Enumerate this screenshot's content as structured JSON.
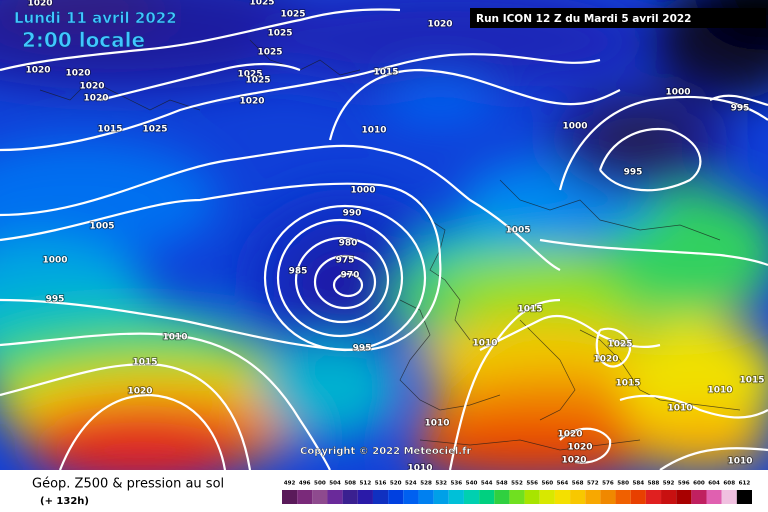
{
  "header": {
    "date": "Lundi 11 avril 2022",
    "time": "2:00 locale",
    "run": "Run ICON 12 Z du Mardi 5 avril 2022"
  },
  "copyright": "Copyright © 2022 Meteociel.fr",
  "footer": {
    "title": "Géop. Z500 & pression au sol",
    "lead": "(+ 132h)"
  },
  "isobar_labels": [
    1020,
    1025,
    1025,
    1020,
    1025,
    1025,
    1020,
    1020,
    1020,
    1020,
    1025,
    1025,
    1020,
    1015,
    1025,
    1015,
    1010,
    1000,
    995,
    1000,
    995,
    1000,
    990,
    980,
    975,
    970,
    985,
    995,
    1005,
    1000,
    995,
    1010,
    1015,
    1020,
    1005,
    1015,
    1010,
    1025,
    1020,
    1015,
    1010,
    1010,
    1015,
    1010,
    1020,
    1020,
    1020,
    1010,
    1010
  ],
  "colorbar": {
    "levels": [
      492,
      496,
      500,
      504,
      508,
      512,
      516,
      520,
      524,
      528,
      532,
      536,
      540,
      544,
      548,
      552,
      556,
      560,
      564,
      568,
      572,
      576,
      580,
      584,
      588,
      592,
      596,
      600,
      604,
      608,
      612
    ],
    "colors": [
      "#5a1a5a",
      "#7a2a7a",
      "#8e4a8e",
      "#6a2a9a",
      "#3a2090",
      "#2a1aa8",
      "#1030c0",
      "#0040e0",
      "#0060f0",
      "#0080f0",
      "#00a0e8",
      "#00c0d8",
      "#00d0b0",
      "#00d080",
      "#30d040",
      "#70e020",
      "#a8e400",
      "#d8e800",
      "#f4e000",
      "#f8c800",
      "#f8a800",
      "#f08800",
      "#f06000",
      "#e84000",
      "#e02020",
      "#c81010",
      "#a80000",
      "#c02060",
      "#e060b0",
      "#f0c0e0",
      "#000000"
    ]
  }
}
